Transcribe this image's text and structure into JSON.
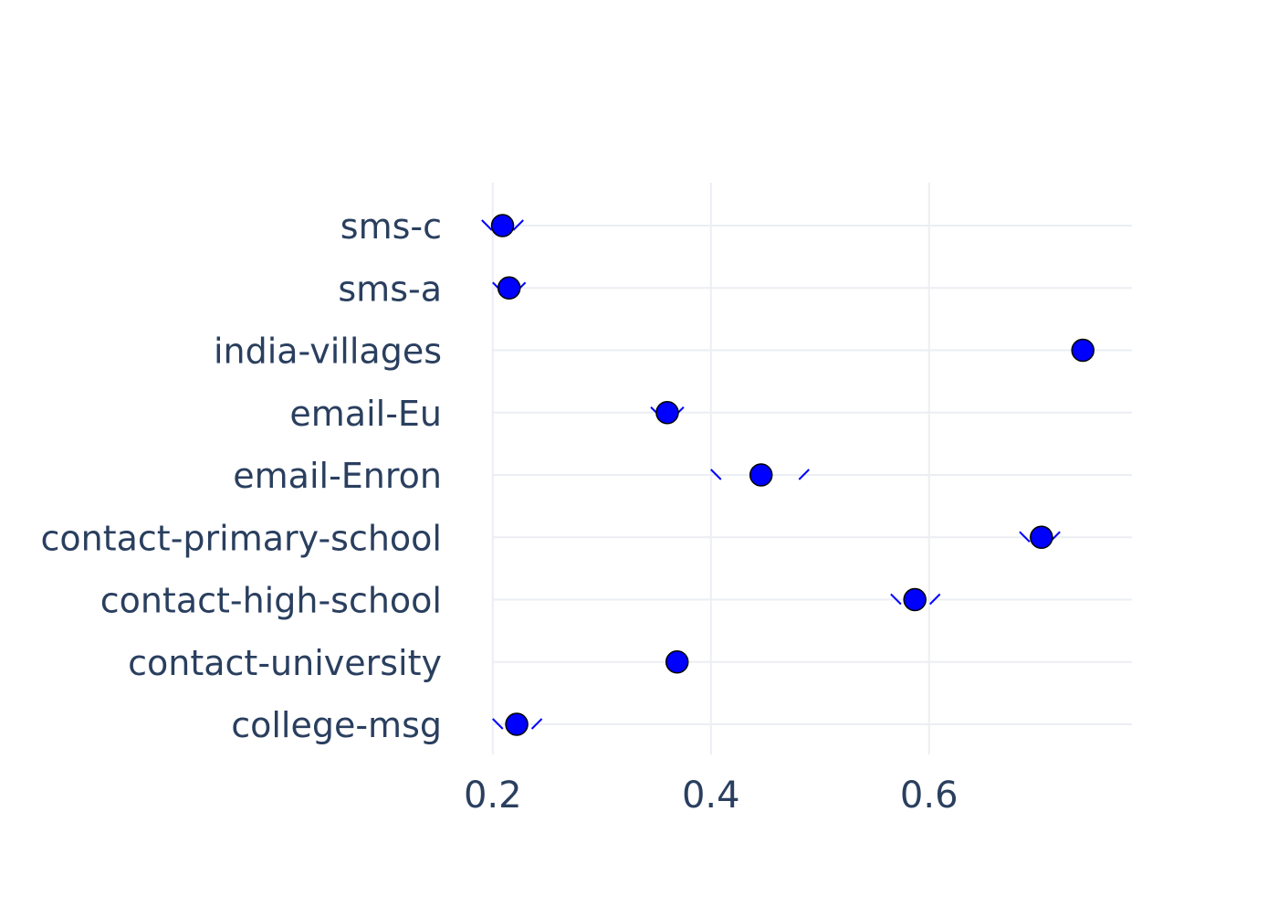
{
  "chart_data": {
    "type": "scatter",
    "orientation": "horizontal",
    "title": "",
    "xlabel": "",
    "ylabel": "",
    "categories": [
      "college-msg",
      "contact-university",
      "contact-high-school",
      "contact-primary-school",
      "email-Enron",
      "email-Eu",
      "india-villages",
      "sms-a",
      "sms-c"
    ],
    "series": [
      {
        "values": [
          0.222,
          0.369,
          0.587,
          0.703,
          0.446,
          0.36,
          0.741,
          0.215,
          0.209
        ],
        "interval_low": [
          0.2,
          0.36,
          0.565,
          0.683,
          0.4,
          0.345,
          0.741,
          0.2,
          0.19
        ],
        "interval_high": [
          0.245,
          0.378,
          0.61,
          0.72,
          0.49,
          0.375,
          0.741,
          0.23,
          0.228
        ]
      }
    ],
    "xlim": [
      0.155,
      0.786
    ],
    "x_ticks": [
      0.2,
      0.4,
      0.6
    ],
    "x_tick_labels": [
      "0.2",
      "0.4",
      "0.6"
    ],
    "grid": true,
    "legend": "none",
    "colors": {
      "marker": "#0000ff",
      "marker_outline": "#000000",
      "interval": "#0000ff",
      "grid": "#ebeef3",
      "text": "#2a3f5f"
    }
  }
}
